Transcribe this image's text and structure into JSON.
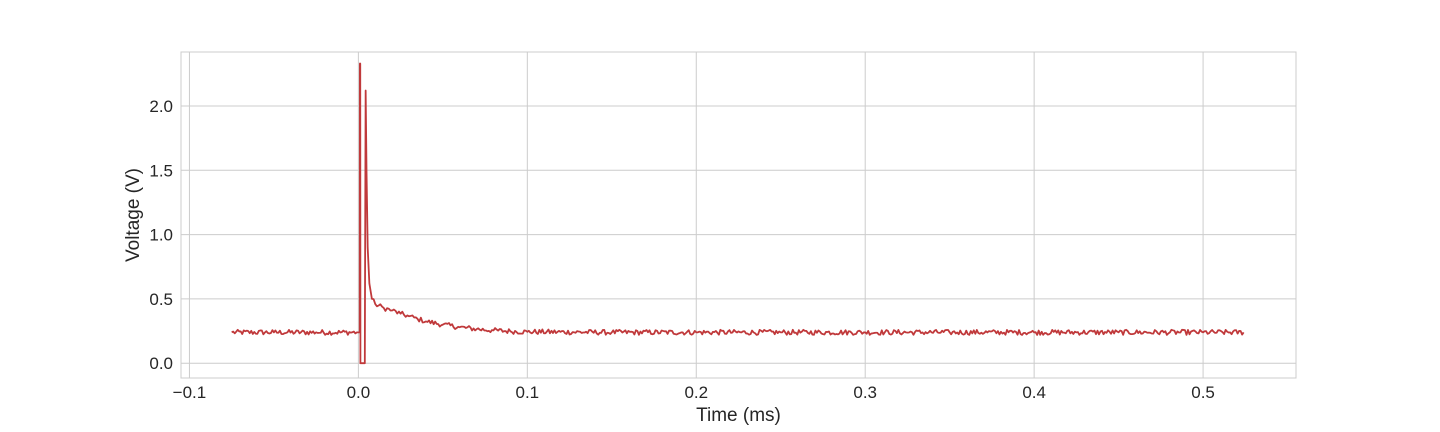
{
  "chart_data": {
    "type": "line",
    "title": "",
    "xlabel": "Time (ms)",
    "ylabel": "Voltage (V)",
    "xlim": [
      -0.105,
      0.555
    ],
    "ylim": [
      -0.115,
      2.42
    ],
    "grid": true,
    "xticks": [
      {
        "value": -0.1,
        "label": "−0.1"
      },
      {
        "value": 0.0,
        "label": "0.0"
      },
      {
        "value": 0.1,
        "label": "0.1"
      },
      {
        "value": 0.2,
        "label": "0.2"
      },
      {
        "value": 0.3,
        "label": "0.3"
      },
      {
        "value": 0.4,
        "label": "0.4"
      },
      {
        "value": 0.5,
        "label": "0.5"
      }
    ],
    "yticks": [
      {
        "value": 0.0,
        "label": "0.0"
      },
      {
        "value": 0.5,
        "label": "0.5"
      },
      {
        "value": 1.0,
        "label": "1.0"
      },
      {
        "value": 1.5,
        "label": "1.5"
      },
      {
        "value": 2.0,
        "label": "2.0"
      }
    ],
    "series": [
      {
        "color": "#c0393b",
        "x": [
          -0.075,
          -0.05,
          -0.025,
          0.0,
          0.0008,
          0.0009,
          0.0011,
          0.0012,
          0.0013,
          0.0038,
          0.0039,
          0.0043,
          0.0048,
          0.0055,
          0.0065,
          0.008,
          0.01,
          0.015,
          0.02,
          0.025,
          0.03,
          0.035,
          0.04,
          0.05,
          0.06,
          0.07,
          0.08,
          0.09,
          0.1,
          0.15,
          0.2,
          0.25,
          0.3,
          0.35,
          0.4,
          0.45,
          0.5,
          0.524
        ],
        "y": [
          0.24,
          0.24,
          0.24,
          0.24,
          0.24,
          2.33,
          2.33,
          0.0,
          0.0,
          0.0,
          0.45,
          2.12,
          1.5,
          0.9,
          0.62,
          0.5,
          0.46,
          0.43,
          0.41,
          0.385,
          0.365,
          0.345,
          0.325,
          0.3,
          0.28,
          0.265,
          0.255,
          0.248,
          0.244,
          0.24,
          0.24,
          0.24,
          0.24,
          0.24,
          0.24,
          0.24,
          0.24,
          0.24
        ],
        "noise_amplitude": 0.02
      }
    ]
  }
}
